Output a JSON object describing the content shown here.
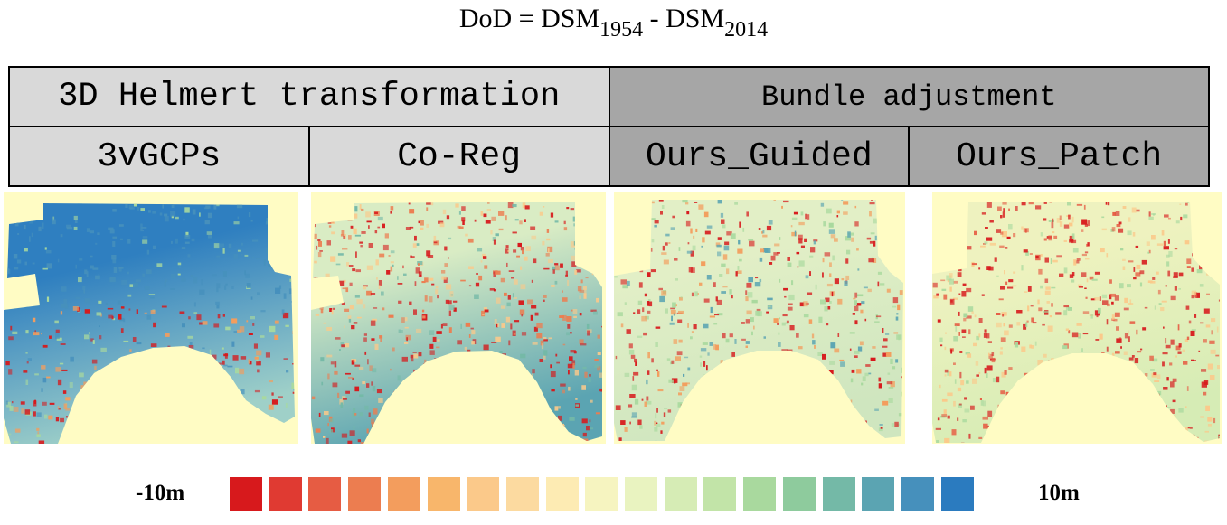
{
  "formula": {
    "lhs": "DoD = DSM",
    "sub1": "1954",
    "mid": " - DSM",
    "sub2": "2014"
  },
  "header": {
    "groups": [
      {
        "label": "3D Helmert transformation"
      },
      {
        "label": "Bundle adjustment"
      }
    ],
    "methods": [
      {
        "label": "3vGCPs"
      },
      {
        "label": "Co-Reg"
      },
      {
        "label": "Ours_Guided"
      },
      {
        "label": "Ours_Patch"
      }
    ]
  },
  "legend": {
    "min_label": "-10m",
    "max_label": "10m",
    "colors": [
      "#d7191c",
      "#e03a32",
      "#e65c43",
      "#ec7d50",
      "#f39d5d",
      "#f8b66b",
      "#fbc98a",
      "#fcdaa0",
      "#fdebb3",
      "#f6f4c0",
      "#e9f3c0",
      "#d6ecb5",
      "#c2e4a8",
      "#a9d99e",
      "#8ecb9d",
      "#74b9a7",
      "#5ba4b2",
      "#4690bc",
      "#2b7bbf"
    ]
  },
  "maps": [
    {
      "name": "3vGCPs",
      "land": "#fffcc4",
      "base": "#2f7fc0",
      "upper_fill": "#2f7fc0",
      "lower_fill": "#9fd0c8",
      "speckle": [
        "#d7191c",
        "#f39d5d",
        "#a9d99e",
        "#4690bc"
      ]
    },
    {
      "name": "Co-Reg",
      "land": "#fffcc4",
      "base": "#b8dcc2",
      "upper_fill": "#d9ecc4",
      "lower_fill": "#5ba4b2",
      "speckle": [
        "#d7191c",
        "#ec7d50",
        "#fbc98a",
        "#74b9a7"
      ]
    },
    {
      "name": "Ours_Guided",
      "land": "#fffcc4",
      "base": "#d9ecc4",
      "upper_fill": "#e2efc6",
      "lower_fill": "#cfe6bf",
      "speckle": [
        "#d7191c",
        "#f39d5d",
        "#a9d99e",
        "#5ba4b2"
      ]
    },
    {
      "name": "Ours_Patch",
      "land": "#fffcc4",
      "base": "#edf2c0",
      "upper_fill": "#eef2bf",
      "lower_fill": "#d6ecb5",
      "speckle": [
        "#d7191c",
        "#e65c43",
        "#fbc98a",
        "#a9d99e"
      ]
    }
  ]
}
